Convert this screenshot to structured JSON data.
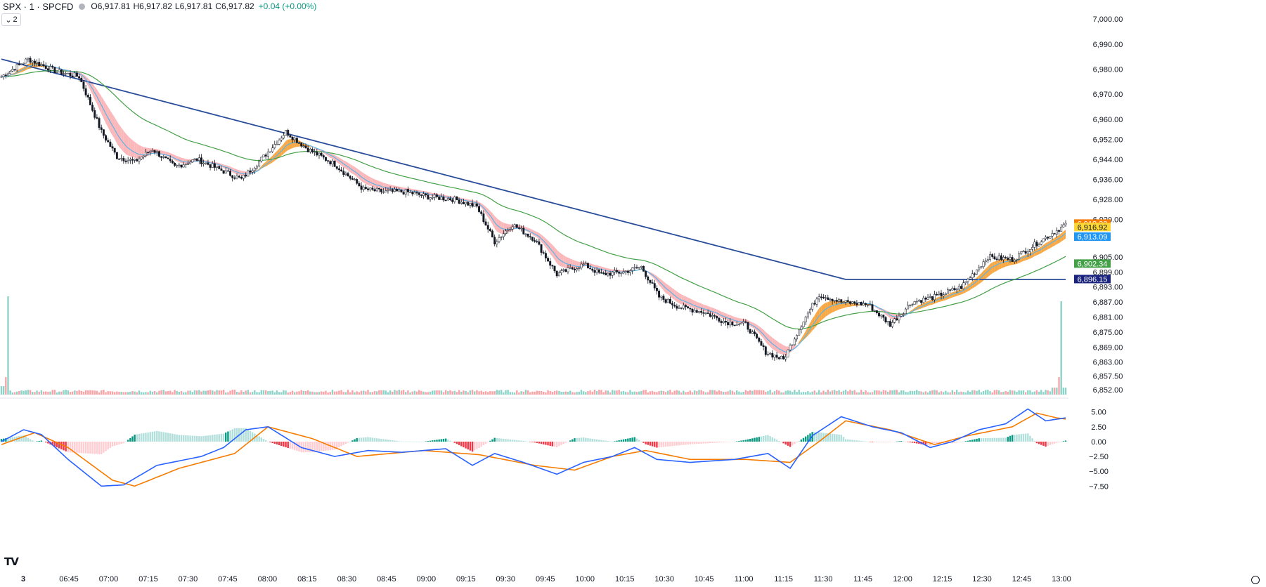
{
  "legend": {
    "symbol": "SPX · 1 · SPCFD",
    "o_label": "O",
    "o_value": "6,917.81",
    "h_label": "H",
    "h_value": "6,917.82",
    "l_label": "L",
    "l_value": "6,917.81",
    "c_label": "C",
    "c_value": "6,917.82",
    "change": "+0.04 (+0.00%)"
  },
  "collapse_button": {
    "icon": "chevron-down-icon",
    "label": "2"
  },
  "colors": {
    "up": "#089981",
    "down": "#f23645",
    "candle_down": "#131722",
    "candle_up": "#ffffff",
    "ema_fast": "#5fb4e6",
    "ema_mid": "#43a047",
    "ema_slow": "#2a4d9b",
    "ribbon_up": "#f7a032",
    "ribbon_down": "#fbb0b4",
    "macd": "#2962ff",
    "signal": "#f57c00"
  },
  "chart_data": [
    {
      "type": "candlestick",
      "title": "",
      "x_ticks": [
        "3",
        "06:45",
        "07:00",
        "07:15",
        "07:30",
        "07:45",
        "08:00",
        "08:15",
        "08:30",
        "08:45",
        "09:00",
        "09:15",
        "09:30",
        "09:45",
        "10:00",
        "10:15",
        "10:30",
        "10:45",
        "11:00",
        "11:15",
        "11:30",
        "11:45",
        "12:00",
        "12:15",
        "12:30",
        "12:45",
        "13:00"
      ],
      "y_ticks": [
        "7,000.00",
        "6,990.00",
        "6,980.00",
        "6,970.00",
        "6,960.00",
        "6,952.00",
        "6,944.00",
        "6,936.00",
        "6,928.00",
        "6,920.00",
        "6,905.00",
        "6,899.00",
        "6,893.00",
        "6,887.00",
        "6,881.00",
        "6,875.00",
        "6,869.00",
        "6,863.00",
        "6,857.50",
        "6,852.00"
      ],
      "ylim": [
        6850,
        7002
      ],
      "close_path": [
        {
          "t": 0,
          "v": 6977
        },
        {
          "t": 12,
          "v": 6984
        },
        {
          "t": 25,
          "v": 6979
        },
        {
          "t": 35,
          "v": 6977
        },
        {
          "t": 45,
          "v": 6955
        },
        {
          "t": 52,
          "v": 6945
        },
        {
          "t": 60,
          "v": 6943
        },
        {
          "t": 68,
          "v": 6948
        },
        {
          "t": 78,
          "v": 6941
        },
        {
          "t": 88,
          "v": 6944
        },
        {
          "t": 98,
          "v": 6940
        },
        {
          "t": 108,
          "v": 6936
        },
        {
          "t": 118,
          "v": 6945
        },
        {
          "t": 128,
          "v": 6955
        },
        {
          "t": 138,
          "v": 6948
        },
        {
          "t": 150,
          "v": 6942
        },
        {
          "t": 163,
          "v": 6932
        },
        {
          "t": 172,
          "v": 6931
        },
        {
          "t": 182,
          "v": 6931
        },
        {
          "t": 192,
          "v": 6929
        },
        {
          "t": 204,
          "v": 6928
        },
        {
          "t": 214,
          "v": 6925
        },
        {
          "t": 222,
          "v": 6911
        },
        {
          "t": 230,
          "v": 6918
        },
        {
          "t": 240,
          "v": 6912
        },
        {
          "t": 250,
          "v": 6898
        },
        {
          "t": 262,
          "v": 6902
        },
        {
          "t": 270,
          "v": 6898
        },
        {
          "t": 280,
          "v": 6899
        },
        {
          "t": 288,
          "v": 6901
        },
        {
          "t": 296,
          "v": 6889
        },
        {
          "t": 305,
          "v": 6885
        },
        {
          "t": 316,
          "v": 6883
        },
        {
          "t": 326,
          "v": 6879
        },
        {
          "t": 335,
          "v": 6878
        },
        {
          "t": 344,
          "v": 6867
        },
        {
          "t": 352,
          "v": 6864
        },
        {
          "t": 360,
          "v": 6878
        },
        {
          "t": 368,
          "v": 6890
        },
        {
          "t": 378,
          "v": 6887
        },
        {
          "t": 390,
          "v": 6886
        },
        {
          "t": 400,
          "v": 6878
        },
        {
          "t": 410,
          "v": 6887
        },
        {
          "t": 420,
          "v": 6889
        },
        {
          "t": 432,
          "v": 6893
        },
        {
          "t": 444,
          "v": 6905
        },
        {
          "t": 455,
          "v": 6904
        },
        {
          "t": 467,
          "v": 6911
        },
        {
          "t": 474,
          "v": 6915
        },
        {
          "t": 479,
          "v": 6918
        }
      ],
      "price_labels": [
        {
          "value": "6,918.32",
          "color": "#f57c00"
        },
        {
          "value": "6,916.92",
          "color": "#fdd835"
        },
        {
          "value": "6,913.09",
          "color": "#2196f3"
        },
        {
          "value": "6,902.34",
          "color": "#43a047"
        },
        {
          "value": "6,896.15",
          "color": "#1a237e"
        }
      ]
    },
    {
      "type": "macd",
      "title": "",
      "y_ticks": [
        "5.00",
        "2.50",
        "0.00",
        "−2.50",
        "−5.00",
        "−7.50"
      ],
      "ylim": [
        -9,
        6.5
      ],
      "macd_path": [
        {
          "t": 0,
          "v": 0
        },
        {
          "t": 10,
          "v": 2
        },
        {
          "t": 18,
          "v": 1.2
        },
        {
          "t": 30,
          "v": -3
        },
        {
          "t": 45,
          "v": -7.5
        },
        {
          "t": 55,
          "v": -7.3
        },
        {
          "t": 70,
          "v": -4
        },
        {
          "t": 90,
          "v": -2.5
        },
        {
          "t": 100,
          "v": -1
        },
        {
          "t": 110,
          "v": 2
        },
        {
          "t": 120,
          "v": 2.5
        },
        {
          "t": 135,
          "v": -1
        },
        {
          "t": 150,
          "v": -2.5
        },
        {
          "t": 165,
          "v": -1.5
        },
        {
          "t": 180,
          "v": -1.8
        },
        {
          "t": 200,
          "v": -1.2
        },
        {
          "t": 212,
          "v": -4
        },
        {
          "t": 222,
          "v": -2
        },
        {
          "t": 235,
          "v": -3.5
        },
        {
          "t": 250,
          "v": -5.5
        },
        {
          "t": 262,
          "v": -3.5
        },
        {
          "t": 275,
          "v": -2.5
        },
        {
          "t": 285,
          "v": -1
        },
        {
          "t": 295,
          "v": -3
        },
        {
          "t": 310,
          "v": -3.5
        },
        {
          "t": 330,
          "v": -3
        },
        {
          "t": 345,
          "v": -2
        },
        {
          "t": 355,
          "v": -4.5
        },
        {
          "t": 365,
          "v": 1
        },
        {
          "t": 378,
          "v": 4.2
        },
        {
          "t": 392,
          "v": 2.5
        },
        {
          "t": 405,
          "v": 1.5
        },
        {
          "t": 418,
          "v": -1
        },
        {
          "t": 428,
          "v": 0
        },
        {
          "t": 440,
          "v": 2
        },
        {
          "t": 452,
          "v": 3
        },
        {
          "t": 462,
          "v": 5.5
        },
        {
          "t": 470,
          "v": 3.5
        },
        {
          "t": 479,
          "v": 4
        }
      ],
      "signal_path": [
        {
          "t": 0,
          "v": -0.5
        },
        {
          "t": 15,
          "v": 1.5
        },
        {
          "t": 30,
          "v": -1
        },
        {
          "t": 50,
          "v": -6.5
        },
        {
          "t": 60,
          "v": -7.5
        },
        {
          "t": 80,
          "v": -4.5
        },
        {
          "t": 105,
          "v": -2
        },
        {
          "t": 120,
          "v": 2.5
        },
        {
          "t": 140,
          "v": 0.5
        },
        {
          "t": 160,
          "v": -2.5
        },
        {
          "t": 190,
          "v": -1.5
        },
        {
          "t": 215,
          "v": -2.2
        },
        {
          "t": 240,
          "v": -4
        },
        {
          "t": 258,
          "v": -4.8
        },
        {
          "t": 275,
          "v": -2.5
        },
        {
          "t": 290,
          "v": -1.5
        },
        {
          "t": 310,
          "v": -3
        },
        {
          "t": 335,
          "v": -3
        },
        {
          "t": 355,
          "v": -3.5
        },
        {
          "t": 368,
          "v": 0
        },
        {
          "t": 380,
          "v": 3.5
        },
        {
          "t": 400,
          "v": 2
        },
        {
          "t": 420,
          "v": -0.5
        },
        {
          "t": 435,
          "v": 1
        },
        {
          "t": 455,
          "v": 2.5
        },
        {
          "t": 466,
          "v": 4.8
        },
        {
          "t": 475,
          "v": 4
        },
        {
          "t": 479,
          "v": 3.8
        }
      ]
    }
  ]
}
